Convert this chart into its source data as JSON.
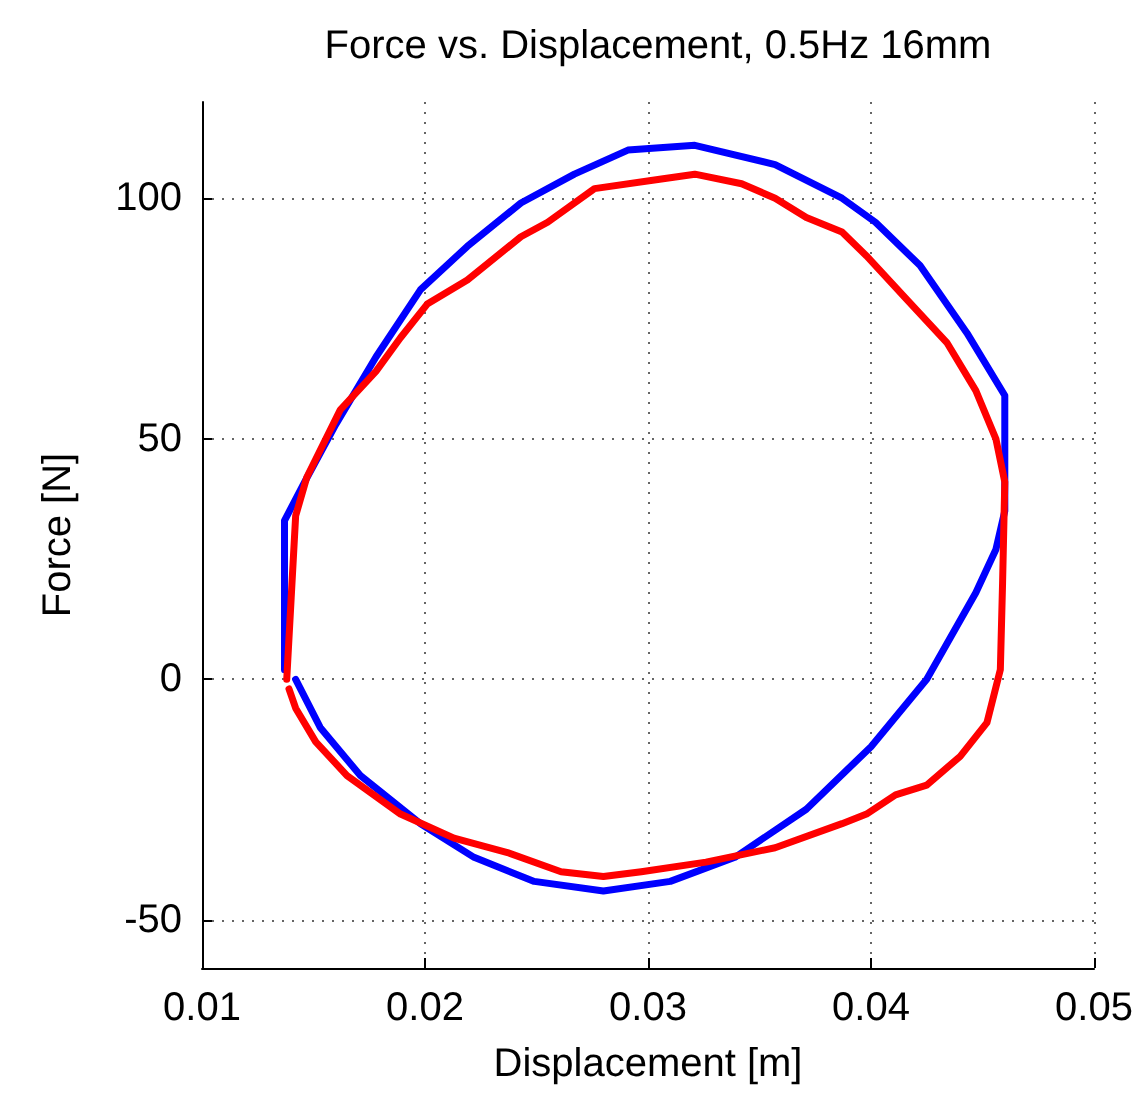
{
  "chart_data": {
    "type": "line",
    "title": "Force vs. Displacement, 0.5Hz 16mm",
    "xlabel": "Displacement [m]",
    "ylabel": "Force [N]",
    "xlim": [
      0.01,
      0.05
    ],
    "xticks": [
      0.01,
      0.02,
      0.03,
      0.04,
      0.05
    ],
    "ylim": [
      -60,
      120
    ],
    "yticks": [
      -50,
      0,
      50,
      100
    ],
    "grid": true,
    "marker": "none",
    "line_style": "solid",
    "series": [
      {
        "color": "#0000ff",
        "x": [
          0.0137,
          0.0137,
          0.0146,
          0.016,
          0.0178,
          0.0198,
          0.0219,
          0.0243,
          0.0267,
          0.0291,
          0.0321,
          0.0357,
          0.0387,
          0.0402,
          0.0422,
          0.0443,
          0.046,
          0.046,
          0.0456,
          0.0447,
          0.0425,
          0.04,
          0.0371,
          0.0339,
          0.031,
          0.028,
          0.0249,
          0.0222,
          0.0198,
          0.0171,
          0.0153,
          0.0142
        ],
        "values": [
          2,
          33,
          41,
          53,
          67,
          81,
          90,
          99,
          105,
          110,
          111,
          107,
          100,
          95,
          86,
          72,
          59,
          35,
          27,
          18,
          0,
          -14,
          -27,
          -37,
          -42,
          -44,
          -42,
          -37,
          -30,
          -20,
          -10,
          0
        ]
      },
      {
        "color": "#ff0000",
        "x": [
          0.0138,
          0.014,
          0.0142,
          0.0147,
          0.0162,
          0.0178,
          0.0189,
          0.0201,
          0.0219,
          0.0243,
          0.0255,
          0.0276,
          0.0306,
          0.0321,
          0.0342,
          0.0357,
          0.0371,
          0.0387,
          0.0398,
          0.0416,
          0.0434,
          0.0447,
          0.0456,
          0.046,
          0.0459,
          0.0458,
          0.0452,
          0.044,
          0.0425,
          0.0411,
          0.0398,
          0.0387,
          0.0357,
          0.0326,
          0.0297,
          0.028,
          0.0261,
          0.0237,
          0.0213,
          0.0189,
          0.0165,
          0.0151,
          0.0142,
          0.0139
        ],
        "values": [
          0,
          17,
          34,
          42,
          56,
          64,
          71,
          78,
          83,
          92,
          95,
          102,
          104,
          105,
          103,
          100,
          96,
          93,
          88,
          79,
          70,
          60,
          50,
          41,
          20,
          2,
          -9,
          -16,
          -22,
          -24,
          -28,
          -30,
          -35,
          -38,
          -40,
          -41,
          -40,
          -36,
          -33,
          -28,
          -20,
          -13,
          -6,
          -2
        ]
      }
    ]
  }
}
